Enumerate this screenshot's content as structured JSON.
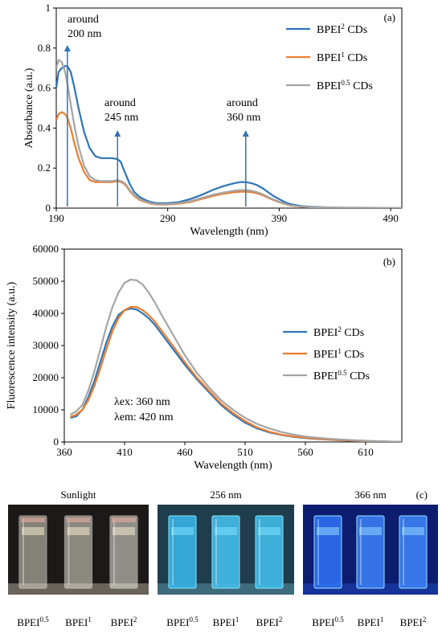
{
  "chart_data": [
    {
      "type": "line",
      "panel_label": "(a)",
      "xlabel": "Wavelength (nm)",
      "ylabel": "Absorbance (a.u.)",
      "xlim": [
        190,
        500
      ],
      "ylim": [
        0,
        1
      ],
      "xticks": [
        "190",
        "290",
        "390",
        "490"
      ],
      "yticks": [
        "0",
        "0.2",
        "0.4",
        "0.6",
        "0.8",
        "1"
      ],
      "legend_position": "top-right",
      "series": [
        {
          "name": "BPEI",
          "sup": "2",
          "suffix": " CDs",
          "color": "#2E75B6",
          "x": [
            190,
            192,
            195,
            198,
            200,
            203,
            206,
            210,
            215,
            220,
            225,
            230,
            235,
            240,
            245,
            248,
            250,
            253,
            256,
            260,
            265,
            270,
            275,
            280,
            290,
            300,
            310,
            320,
            330,
            340,
            350,
            355,
            360,
            365,
            370,
            375,
            380,
            385,
            390,
            395,
            400,
            410,
            420,
            440,
            460,
            480,
            500
          ],
          "y": [
            0.6,
            0.68,
            0.7,
            0.71,
            0.71,
            0.68,
            0.61,
            0.5,
            0.38,
            0.3,
            0.26,
            0.25,
            0.25,
            0.25,
            0.245,
            0.23,
            0.2,
            0.16,
            0.12,
            0.08,
            0.055,
            0.04,
            0.03,
            0.025,
            0.025,
            0.03,
            0.045,
            0.065,
            0.09,
            0.11,
            0.125,
            0.13,
            0.13,
            0.125,
            0.115,
            0.1,
            0.08,
            0.06,
            0.045,
            0.03,
            0.02,
            0.01,
            0.006,
            0.003,
            0.002,
            0.001,
            0.0
          ]
        },
        {
          "name": "BPEI",
          "sup": "1",
          "suffix": " CDs",
          "color": "#ED7D31",
          "x": [
            190,
            192,
            195,
            198,
            200,
            203,
            206,
            210,
            215,
            220,
            225,
            230,
            235,
            240,
            245,
            248,
            250,
            253,
            256,
            260,
            265,
            270,
            275,
            280,
            290,
            300,
            310,
            320,
            330,
            340,
            350,
            355,
            360,
            365,
            370,
            375,
            380,
            385,
            390,
            395,
            400,
            410,
            420,
            440,
            460,
            480,
            500
          ],
          "y": [
            0.44,
            0.47,
            0.48,
            0.47,
            0.45,
            0.4,
            0.33,
            0.25,
            0.18,
            0.14,
            0.13,
            0.13,
            0.13,
            0.13,
            0.135,
            0.13,
            0.125,
            0.11,
            0.085,
            0.06,
            0.04,
            0.03,
            0.022,
            0.018,
            0.018,
            0.022,
            0.03,
            0.045,
            0.06,
            0.072,
            0.08,
            0.082,
            0.082,
            0.08,
            0.074,
            0.065,
            0.052,
            0.04,
            0.03,
            0.02,
            0.013,
            0.007,
            0.004,
            0.002,
            0.001,
            0.0,
            0.0
          ]
        },
        {
          "name": "BPEI",
          "sup": "0.5",
          "suffix": " CDs",
          "color": "#A5A5A5",
          "x": [
            190,
            192,
            195,
            198,
            200,
            203,
            206,
            210,
            215,
            220,
            225,
            230,
            235,
            240,
            245,
            248,
            250,
            253,
            256,
            260,
            265,
            270,
            275,
            280,
            290,
            300,
            310,
            320,
            330,
            340,
            350,
            355,
            360,
            365,
            370,
            375,
            380,
            385,
            390,
            395,
            400,
            410,
            420,
            440,
            460,
            480,
            500
          ],
          "y": [
            0.7,
            0.74,
            0.73,
            0.68,
            0.62,
            0.52,
            0.42,
            0.31,
            0.21,
            0.16,
            0.14,
            0.135,
            0.135,
            0.135,
            0.14,
            0.135,
            0.13,
            0.115,
            0.09,
            0.065,
            0.045,
            0.033,
            0.025,
            0.02,
            0.02,
            0.025,
            0.034,
            0.05,
            0.066,
            0.078,
            0.087,
            0.09,
            0.09,
            0.087,
            0.08,
            0.07,
            0.056,
            0.043,
            0.032,
            0.022,
            0.014,
            0.008,
            0.004,
            0.002,
            0.001,
            0.0,
            0.0
          ]
        }
      ],
      "annotations": [
        {
          "lines": [
            "around",
            "200 nm"
          ],
          "x": 200
        },
        {
          "lines": [
            "around",
            "245 nm"
          ],
          "x": 245
        },
        {
          "lines": [
            "around",
            "360 nm"
          ],
          "x": 360
        }
      ]
    },
    {
      "type": "line",
      "panel_label": "(b)",
      "xlabel": "Wavelength (nm)",
      "ylabel": "Fluorescence intensity (a.u.)",
      "xlim": [
        360,
        640
      ],
      "ylim": [
        0,
        60000
      ],
      "xticks": [
        "360",
        "410",
        "460",
        "510",
        "560",
        "610"
      ],
      "yticks": [
        "0",
        "10000",
        "20000",
        "30000",
        "40000",
        "50000",
        "60000"
      ],
      "legend_position": "right",
      "excitation_note": [
        "λex: 360 nm",
        "λem: 420 nm"
      ],
      "series": [
        {
          "name": "BPEI",
          "sup": "2",
          "suffix": " CDs",
          "color": "#2E75B6",
          "x": [
            365,
            370,
            375,
            380,
            385,
            390,
            395,
            400,
            405,
            410,
            415,
            420,
            425,
            430,
            435,
            440,
            450,
            460,
            470,
            480,
            490,
            500,
            510,
            520,
            530,
            540,
            550,
            560,
            570,
            580,
            590,
            600,
            610,
            620,
            630,
            640
          ],
          "y": [
            7500,
            8000,
            10000,
            14000,
            19000,
            25000,
            31000,
            36000,
            39500,
            41000,
            41500,
            41200,
            40000,
            38500,
            36500,
            34000,
            29000,
            24000,
            19500,
            15500,
            11500,
            8500,
            6000,
            4200,
            3000,
            2200,
            1600,
            1200,
            900,
            700,
            500,
            350,
            250,
            150,
            80,
            0
          ]
        },
        {
          "name": "BPEI",
          "sup": "1",
          "suffix": " CDs",
          "color": "#ED7D31",
          "x": [
            365,
            370,
            375,
            380,
            385,
            390,
            395,
            400,
            405,
            410,
            415,
            420,
            425,
            430,
            435,
            440,
            450,
            460,
            470,
            480,
            490,
            500,
            510,
            520,
            530,
            540,
            550,
            560,
            570,
            580,
            590,
            600,
            610,
            620,
            630,
            640
          ],
          "y": [
            7800,
            8500,
            10000,
            13000,
            17500,
            23000,
            29000,
            34500,
            38500,
            41000,
            42000,
            42000,
            41000,
            39500,
            37500,
            35000,
            30000,
            24800,
            20000,
            16000,
            12000,
            9000,
            6500,
            4500,
            3200,
            2300,
            1700,
            1300,
            1000,
            750,
            550,
            400,
            280,
            170,
            90,
            0
          ]
        },
        {
          "name": "BPEI",
          "sup": "0.5",
          "suffix": " CDs",
          "color": "#A5A5A5",
          "x": [
            365,
            370,
            375,
            380,
            385,
            390,
            395,
            400,
            405,
            410,
            415,
            420,
            425,
            430,
            435,
            440,
            450,
            460,
            470,
            480,
            490,
            500,
            510,
            520,
            530,
            540,
            550,
            560,
            570,
            580,
            590,
            600,
            610,
            620,
            630,
            640
          ],
          "y": [
            8500,
            9500,
            11500,
            16000,
            22000,
            29000,
            36000,
            42000,
            46500,
            49500,
            50500,
            50300,
            49000,
            46500,
            43500,
            40000,
            33500,
            27000,
            21500,
            17000,
            13000,
            10000,
            7500,
            5600,
            4200,
            3100,
            2300,
            1700,
            1300,
            1000,
            750,
            550,
            380,
            250,
            130,
            0
          ]
        }
      ]
    }
  ],
  "photos": {
    "panel_label": "(c)",
    "groups": [
      {
        "title": "Sunlight",
        "bg": "#1c1a18",
        "tint": [
          "#d9d6c8",
          "#e6e3d6",
          "#f0eee6"
        ],
        "glow": "#f4e9c8",
        "labels": [
          {
            "base": "BPEI",
            "sup": "0.5"
          },
          {
            "base": "BPEI",
            "sup": "1"
          },
          {
            "base": "BPEI",
            "sup": "2"
          }
        ]
      },
      {
        "title": "256 nm",
        "bg": "#1f3d4c",
        "tint": [
          "#37b3e6",
          "#43bdea",
          "#40bbe8"
        ],
        "glow": "#7fe3ff",
        "labels": [
          {
            "base": "BPEI",
            "sup": "0.5"
          },
          {
            "base": "BPEI",
            "sup": "1"
          },
          {
            "base": "BPEI",
            "sup": "2"
          }
        ]
      },
      {
        "title": "366 nm",
        "bg": "#0c1c6e",
        "tint": [
          "#2e6ff0",
          "#3a7cf3",
          "#3c80f4"
        ],
        "glow": "#8fd8ff",
        "labels": [
          {
            "base": "BPEI",
            "sup": "0.5"
          },
          {
            "base": "BPEI",
            "sup": "1"
          },
          {
            "base": "BPEI",
            "sup": "2"
          }
        ]
      }
    ]
  }
}
